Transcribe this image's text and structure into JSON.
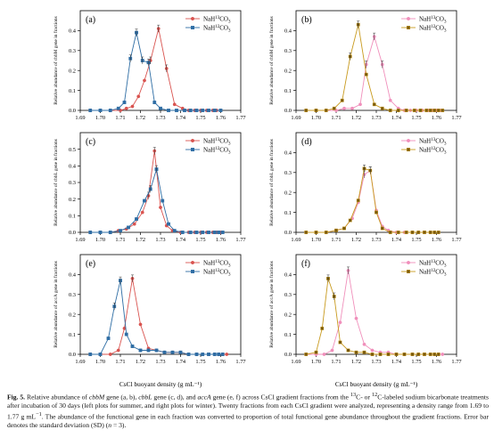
{
  "figure": {
    "panel_x_label": "CsCl buoyant density (g mL⁻¹)",
    "x_ticks": [
      "1.69",
      "1.70",
      "1.71",
      "1.72",
      "1.73",
      "1.74",
      "1.75",
      "1.76",
      "1.77"
    ]
  },
  "colors": {
    "red": "#d9534f",
    "blue": "#2e6da4",
    "pink": "#f08fbb",
    "olive": "#c89a1e",
    "olive_marker": "#7a5a0b"
  },
  "caption": {
    "lead": "Fig. 5.",
    "seg1": " Relative abundance of ",
    "gene1": "cbbM",
    "seg2": " gene (a, b), ",
    "gene2": "cbbL",
    "seg3": " gene (c, d), and ",
    "gene3": "accA",
    "seg4": " gene (e, f) across CsCl gradient fractions from the ",
    "sup13": "13",
    "seg5": "C- or ",
    "sup12": "12",
    "seg6": "C-labeled sodium bicarbonate treatments after incubation of 30 days (left plots for summer, and right plots for winter). Twenty fractions from each CsCl gradient were analyzed, representing a density range from 1.69 to 1.77 g mL",
    "supm1": "−1",
    "seg7": ". The abundance of the functional gene in each fraction was converted to proportion of total functional gene abundance throughout the gradient fractions. Error bar denotes the standard deviation (SD) (",
    "n_var": "n",
    "seg8": " = 3)."
  },
  "chart_data": [
    {
      "panel": "(a)",
      "type": "line",
      "ylabel": "Relative abundance of cbbM gene in fractions",
      "xlim": [
        1.69,
        1.77
      ],
      "ylim": [
        0,
        0.5
      ],
      "yticks": [
        "0.0",
        "0.1",
        "0.2",
        "0.3",
        "0.4"
      ],
      "series": [
        {
          "name": "NaH13CO3",
          "marker": "circle",
          "color": "red",
          "x": [
            1.695,
            1.7,
            1.705,
            1.71,
            1.713,
            1.716,
            1.719,
            1.722,
            1.725,
            1.729,
            1.733,
            1.737,
            1.741,
            1.744,
            1.747,
            1.75,
            1.753,
            1.756,
            1.758,
            1.76
          ],
          "y": [
            0.0,
            0.0,
            0.0,
            0.0,
            0.01,
            0.02,
            0.07,
            0.15,
            0.25,
            0.41,
            0.21,
            0.03,
            0.01,
            0.0,
            0.0,
            0.0,
            0.0,
            0.0,
            0.0,
            0.0
          ]
        },
        {
          "name": "NaH12CO3",
          "marker": "square",
          "color": "blue",
          "x": [
            1.695,
            1.7,
            1.705,
            1.709,
            1.712,
            1.715,
            1.718,
            1.721,
            1.724,
            1.727,
            1.73,
            1.734,
            1.738,
            1.742,
            1.745,
            1.748,
            1.751,
            1.754,
            1.757,
            1.76
          ],
          "y": [
            0.0,
            0.0,
            0.0,
            0.01,
            0.04,
            0.26,
            0.39,
            0.25,
            0.24,
            0.04,
            0.01,
            0.0,
            0.0,
            0.0,
            0.0,
            0.0,
            0.0,
            0.0,
            0.0,
            0.0
          ]
        }
      ]
    },
    {
      "panel": "(b)",
      "type": "line",
      "ylabel": "Relative abundance of cbbM gene in fractions",
      "xlim": [
        1.69,
        1.77
      ],
      "ylim": [
        0,
        0.5
      ],
      "yticks": [
        "0.0",
        "0.1",
        "0.2",
        "0.3",
        "0.4"
      ],
      "series": [
        {
          "name": "NaH13CO3",
          "marker": "circle",
          "color": "pink",
          "x": [
            1.695,
            1.7,
            1.705,
            1.71,
            1.714,
            1.718,
            1.722,
            1.725,
            1.729,
            1.733,
            1.737,
            1.741,
            1.744,
            1.747,
            1.75,
            1.753,
            1.756,
            1.758,
            1.76,
            1.762
          ],
          "y": [
            0.0,
            0.0,
            0.0,
            0.0,
            0.01,
            0.01,
            0.03,
            0.23,
            0.37,
            0.23,
            0.05,
            0.01,
            0.0,
            0.0,
            0.0,
            0.0,
            0.0,
            0.0,
            0.0,
            0.0
          ]
        },
        {
          "name": "NaH12CO3",
          "marker": "square",
          "color": "olive",
          "x": [
            1.695,
            1.7,
            1.705,
            1.709,
            1.713,
            1.717,
            1.721,
            1.725,
            1.729,
            1.733,
            1.737,
            1.741,
            1.745,
            1.749,
            1.752,
            1.755,
            1.757,
            1.759,
            1.761,
            1.763
          ],
          "y": [
            0.0,
            0.0,
            0.0,
            0.01,
            0.05,
            0.27,
            0.43,
            0.18,
            0.03,
            0.01,
            0.0,
            0.0,
            0.0,
            0.0,
            0.0,
            0.0,
            0.0,
            0.0,
            0.0,
            0.0
          ]
        }
      ]
    },
    {
      "panel": "(c)",
      "type": "line",
      "ylabel": "Relative abundance of cbbL gene in fractions",
      "xlim": [
        1.69,
        1.77
      ],
      "ylim": [
        0,
        0.6
      ],
      "yticks": [
        "0.0",
        "0.1",
        "0.2",
        "0.3",
        "0.4",
        "0.5"
      ],
      "series": [
        {
          "name": "NaH13CO3",
          "marker": "circle",
          "color": "red",
          "x": [
            1.695,
            1.7,
            1.705,
            1.709,
            1.713,
            1.717,
            1.721,
            1.724,
            1.727,
            1.73,
            1.733,
            1.736,
            1.74,
            1.744,
            1.747,
            1.75,
            1.753,
            1.756,
            1.758,
            1.76
          ],
          "y": [
            0.0,
            0.0,
            0.0,
            0.01,
            0.02,
            0.05,
            0.12,
            0.22,
            0.49,
            0.15,
            0.04,
            0.01,
            0.0,
            0.0,
            0.0,
            0.0,
            0.0,
            0.0,
            0.0,
            0.0
          ]
        },
        {
          "name": "NaH12CO3",
          "marker": "square",
          "color": "blue",
          "x": [
            1.695,
            1.7,
            1.705,
            1.71,
            1.714,
            1.718,
            1.722,
            1.725,
            1.728,
            1.731,
            1.734,
            1.737,
            1.741,
            1.745,
            1.748,
            1.751,
            1.754,
            1.757,
            1.759,
            1.761
          ],
          "y": [
            0.0,
            0.0,
            0.0,
            0.01,
            0.03,
            0.08,
            0.19,
            0.26,
            0.38,
            0.19,
            0.05,
            0.01,
            0.0,
            0.0,
            0.0,
            0.0,
            0.0,
            0.0,
            0.0,
            0.0
          ]
        }
      ]
    },
    {
      "panel": "(d)",
      "type": "line",
      "ylabel": "Relative abundance of cbbL gene in fractions",
      "xlim": [
        1.69,
        1.77
      ],
      "ylim": [
        0,
        0.5
      ],
      "yticks": [
        "0.0",
        "0.1",
        "0.2",
        "0.3",
        "0.4"
      ],
      "series": [
        {
          "name": "NaH13CO3",
          "marker": "circle",
          "color": "pink",
          "x": [
            1.695,
            1.7,
            1.705,
            1.71,
            1.714,
            1.718,
            1.721,
            1.724,
            1.727,
            1.73,
            1.733,
            1.736,
            1.74,
            1.744,
            1.748,
            1.751,
            1.754,
            1.757,
            1.759,
            1.761
          ],
          "y": [
            0.0,
            0.0,
            0.0,
            0.01,
            0.02,
            0.07,
            0.15,
            0.29,
            0.31,
            0.11,
            0.03,
            0.01,
            0.0,
            0.0,
            0.0,
            0.0,
            0.0,
            0.0,
            0.0,
            0.0
          ]
        },
        {
          "name": "NaH12CO3",
          "marker": "square",
          "color": "olive",
          "x": [
            1.695,
            1.7,
            1.705,
            1.71,
            1.714,
            1.717,
            1.721,
            1.724,
            1.727,
            1.73,
            1.733,
            1.737,
            1.741,
            1.745,
            1.748,
            1.751,
            1.754,
            1.757,
            1.759,
            1.761
          ],
          "y": [
            0.0,
            0.0,
            0.0,
            0.01,
            0.02,
            0.06,
            0.16,
            0.32,
            0.31,
            0.1,
            0.02,
            0.0,
            0.0,
            0.0,
            0.0,
            0.0,
            0.0,
            0.0,
            0.0,
            0.0
          ]
        }
      ]
    },
    {
      "panel": "(e)",
      "type": "line",
      "ylabel": "Relative abundance of accA gene in fractions",
      "xlim": [
        1.69,
        1.77
      ],
      "ylim": [
        0,
        0.5
      ],
      "yticks": [
        "0.0",
        "0.1",
        "0.2",
        "0.3",
        "0.4"
      ],
      "series": [
        {
          "name": "NaH13CO3",
          "marker": "circle",
          "color": "red",
          "x": [
            1.695,
            1.7,
            1.705,
            1.709,
            1.712,
            1.716,
            1.72,
            1.724,
            1.728,
            1.732,
            1.736,
            1.74,
            1.744,
            1.748,
            1.751,
            1.754,
            1.757,
            1.759,
            1.761,
            1.763
          ],
          "y": [
            0.0,
            0.0,
            0.0,
            0.02,
            0.13,
            0.38,
            0.15,
            0.03,
            0.02,
            0.01,
            0.01,
            0.01,
            0.0,
            0.0,
            0.0,
            0.0,
            0.0,
            0.0,
            0.0,
            0.0
          ]
        },
        {
          "name": "NaH12CO3",
          "marker": "square",
          "color": "blue",
          "x": [
            1.695,
            1.7,
            1.704,
            1.707,
            1.71,
            1.713,
            1.716,
            1.72,
            1.724,
            1.728,
            1.732,
            1.736,
            1.74,
            1.744,
            1.748,
            1.751,
            1.754,
            1.757,
            1.759,
            1.761
          ],
          "y": [
            0.0,
            0.0,
            0.08,
            0.24,
            0.37,
            0.1,
            0.04,
            0.02,
            0.02,
            0.02,
            0.01,
            0.01,
            0.01,
            0.0,
            0.0,
            0.0,
            0.0,
            0.0,
            0.0,
            0.0
          ]
        }
      ]
    },
    {
      "panel": "(f)",
      "type": "line",
      "ylabel": "Relative abundance of accA gene in fractions",
      "xlim": [
        1.69,
        1.77
      ],
      "ylim": [
        0,
        0.5
      ],
      "yticks": [
        "0.0",
        "0.1",
        "0.2",
        "0.3",
        "0.4"
      ],
      "series": [
        {
          "name": "NaH13CO3",
          "marker": "circle",
          "color": "pink",
          "x": [
            1.695,
            1.7,
            1.704,
            1.708,
            1.712,
            1.716,
            1.72,
            1.724,
            1.728,
            1.732,
            1.736,
            1.74,
            1.744,
            1.748,
            1.751,
            1.754,
            1.757,
            1.759,
            1.761,
            1.763
          ],
          "y": [
            0.0,
            0.0,
            0.0,
            0.02,
            0.16,
            0.42,
            0.18,
            0.05,
            0.02,
            0.01,
            0.01,
            0.0,
            0.0,
            0.0,
            0.0,
            0.0,
            0.0,
            0.0,
            0.0,
            0.0
          ]
        },
        {
          "name": "NaH12CO3",
          "marker": "square",
          "color": "olive",
          "x": [
            1.695,
            1.7,
            1.703,
            1.706,
            1.709,
            1.712,
            1.716,
            1.72,
            1.724,
            1.728,
            1.732,
            1.736,
            1.74,
            1.744,
            1.748,
            1.751,
            1.754,
            1.757,
            1.759,
            1.761
          ],
          "y": [
            0.0,
            0.01,
            0.13,
            0.38,
            0.29,
            0.06,
            0.02,
            0.01,
            0.01,
            0.0,
            0.0,
            0.0,
            0.0,
            0.0,
            0.0,
            0.0,
            0.0,
            0.0,
            0.0,
            0.0
          ]
        }
      ]
    }
  ]
}
